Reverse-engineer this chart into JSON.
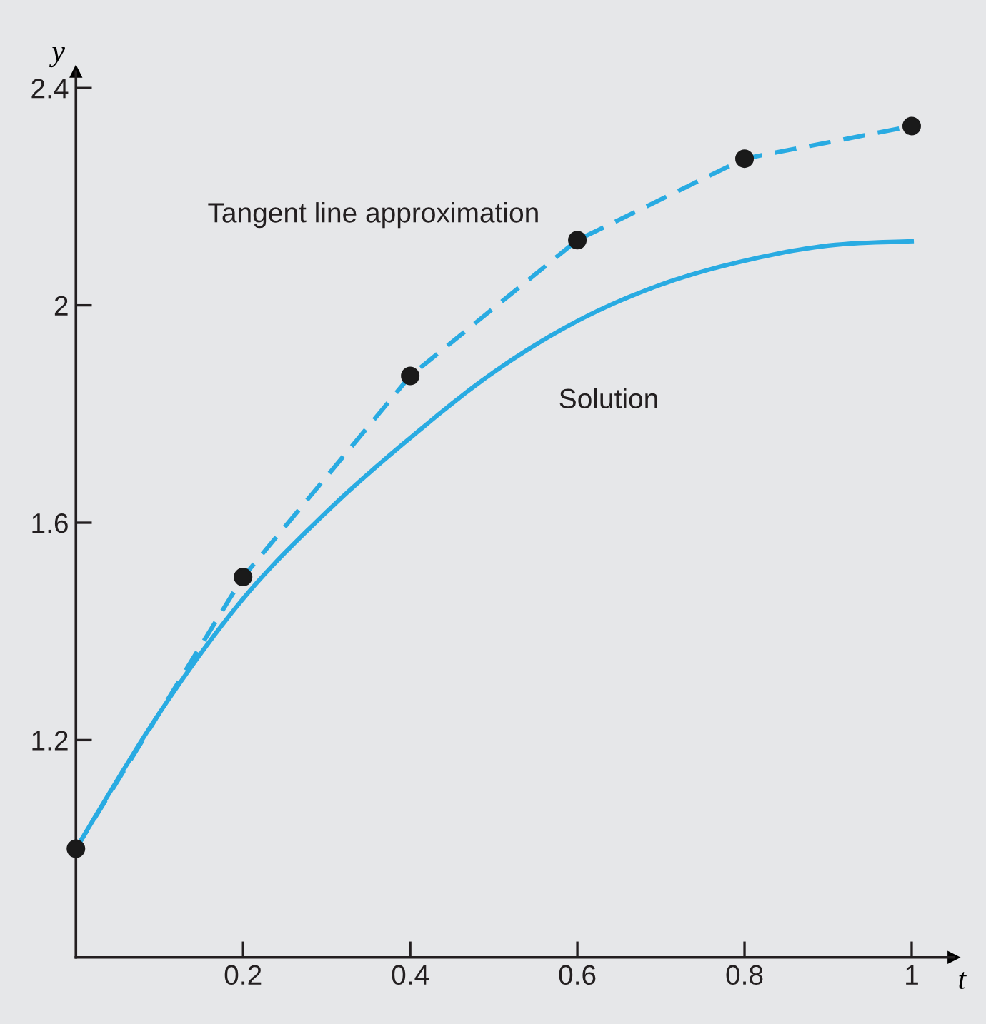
{
  "chart_data": {
    "type": "line",
    "xlabel": "t",
    "ylabel": "y",
    "xlim": [
      0,
      1.05
    ],
    "ylim": [
      0.8,
      2.43
    ],
    "xticks": [
      0.2,
      0.4,
      0.6,
      0.8,
      1
    ],
    "yticks": [
      1.2,
      1.6,
      2,
      2.4
    ],
    "grid": false,
    "legend": false,
    "series": [
      {
        "name": "Tangent line approximation",
        "line_style": "dashed",
        "color": "#29abe2",
        "x": [
          0,
          0.2,
          0.4,
          0.6,
          0.8,
          1
        ],
        "values": [
          1,
          1.5,
          1.87,
          2.12,
          2.27,
          2.33
        ]
      },
      {
        "type": "scatter",
        "marker": "circle",
        "color": "#1a1a1a",
        "x": [
          0,
          0.2,
          0.4,
          0.6,
          0.8,
          1
        ],
        "values": [
          1,
          1.5,
          1.87,
          2.12,
          2.27,
          2.33
        ]
      },
      {
        "name": "Solution",
        "line_style": "solid",
        "color": "#29abe2",
        "x": [
          0,
          0.1,
          0.2,
          0.3,
          0.4,
          0.5,
          0.6,
          0.7,
          0.8,
          0.9,
          1
        ],
        "values": [
          1,
          1.25,
          1.46,
          1.62,
          1.756,
          1.877,
          1.971,
          2.038,
          2.082,
          2.11,
          2.118
        ]
      }
    ]
  }
}
